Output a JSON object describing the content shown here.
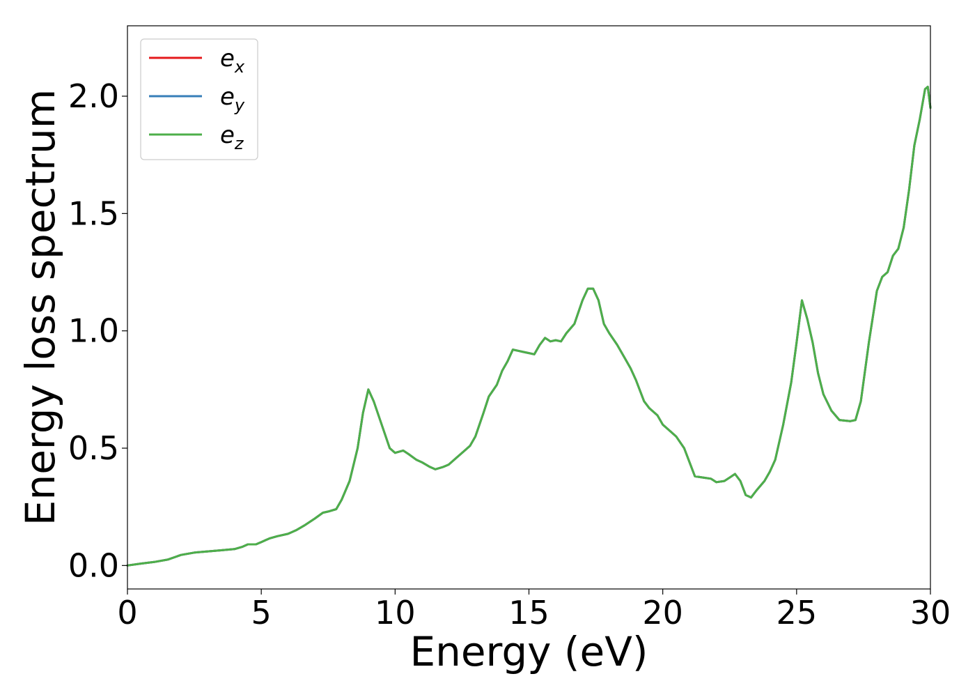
{
  "chart_data": {
    "type": "line",
    "xlabel": "Energy (eV)",
    "ylabel": "Energy loss spectrum",
    "xlim": [
      0,
      30
    ],
    "ylim": [
      -0.1,
      2.3
    ],
    "xticks": [
      "0",
      "5",
      "10",
      "15",
      "20",
      "25",
      "30"
    ],
    "yticks": [
      "0.0",
      "0.5",
      "1.0",
      "1.5",
      "2.0"
    ],
    "grid": false,
    "legend_placement": "top-left",
    "legend": [
      {
        "base": "e",
        "sub": "x",
        "color": "#e41a1c"
      },
      {
        "base": "e",
        "sub": "y",
        "color": "#377eb8"
      },
      {
        "base": "e",
        "sub": "z",
        "color": "#4daf4a"
      }
    ],
    "x": [
      0,
      0.5,
      1.0,
      1.5,
      2.0,
      2.5,
      3.0,
      3.5,
      4.0,
      4.3,
      4.5,
      4.8,
      5.0,
      5.3,
      5.6,
      6.0,
      6.3,
      6.6,
      7.0,
      7.3,
      7.5,
      7.8,
      8.0,
      8.3,
      8.6,
      8.8,
      9.0,
      9.2,
      9.5,
      9.8,
      10.0,
      10.3,
      10.5,
      10.8,
      11.0,
      11.3,
      11.5,
      11.8,
      12.0,
      12.3,
      12.6,
      12.8,
      13.0,
      13.3,
      13.5,
      13.8,
      14.0,
      14.2,
      14.4,
      14.6,
      14.8,
      15.0,
      15.2,
      15.4,
      15.6,
      15.8,
      16.0,
      16.2,
      16.4,
      16.7,
      17.0,
      17.2,
      17.4,
      17.6,
      17.8,
      18.0,
      18.3,
      18.6,
      18.8,
      19.0,
      19.3,
      19.5,
      19.8,
      20.0,
      20.3,
      20.5,
      20.8,
      21.0,
      21.2,
      21.5,
      21.8,
      22.0,
      22.3,
      22.5,
      22.7,
      22.9,
      23.1,
      23.3,
      23.5,
      23.8,
      24.0,
      24.2,
      24.5,
      24.8,
      25.0,
      25.2,
      25.4,
      25.6,
      25.8,
      26.0,
      26.3,
      26.6,
      27.0,
      27.2,
      27.4,
      27.7,
      28.0,
      28.2,
      28.4,
      28.6,
      28.8,
      29.0,
      29.2,
      29.4,
      29.6,
      29.8,
      29.9,
      30.0
    ],
    "series": [
      {
        "name": "e_x",
        "color": "#e41a1c",
        "values": [
          0.0,
          0.008,
          0.015,
          0.025,
          0.045,
          0.055,
          0.06,
          0.065,
          0.07,
          0.08,
          0.09,
          0.09,
          0.1,
          0.115,
          0.125,
          0.135,
          0.15,
          0.17,
          0.2,
          0.225,
          0.23,
          0.24,
          0.28,
          0.36,
          0.5,
          0.65,
          0.75,
          0.7,
          0.6,
          0.5,
          0.48,
          0.49,
          0.475,
          0.45,
          0.44,
          0.42,
          0.41,
          0.42,
          0.43,
          0.46,
          0.49,
          0.51,
          0.55,
          0.65,
          0.72,
          0.77,
          0.83,
          0.87,
          0.92,
          0.915,
          0.91,
          0.905,
          0.9,
          0.94,
          0.97,
          0.955,
          0.96,
          0.955,
          0.99,
          1.03,
          1.13,
          1.18,
          1.18,
          1.13,
          1.03,
          0.99,
          0.94,
          0.88,
          0.84,
          0.79,
          0.7,
          0.67,
          0.64,
          0.6,
          0.57,
          0.55,
          0.5,
          0.44,
          0.38,
          0.375,
          0.37,
          0.355,
          0.36,
          0.375,
          0.39,
          0.36,
          0.3,
          0.29,
          0.32,
          0.36,
          0.4,
          0.45,
          0.6,
          0.78,
          0.95,
          1.13,
          1.05,
          0.95,
          0.82,
          0.73,
          0.66,
          0.62,
          0.615,
          0.62,
          0.7,
          0.95,
          1.17,
          1.23,
          1.25,
          1.32,
          1.35,
          1.44,
          1.6,
          1.79,
          1.9,
          2.03,
          2.04,
          1.95
        ]
      },
      {
        "name": "e_y",
        "color": "#377eb8",
        "values": [
          0.0,
          0.008,
          0.015,
          0.025,
          0.045,
          0.055,
          0.06,
          0.065,
          0.07,
          0.08,
          0.09,
          0.09,
          0.1,
          0.115,
          0.125,
          0.135,
          0.15,
          0.17,
          0.2,
          0.225,
          0.23,
          0.24,
          0.28,
          0.36,
          0.5,
          0.65,
          0.75,
          0.7,
          0.6,
          0.5,
          0.48,
          0.49,
          0.475,
          0.45,
          0.44,
          0.42,
          0.41,
          0.42,
          0.43,
          0.46,
          0.49,
          0.51,
          0.55,
          0.65,
          0.72,
          0.77,
          0.83,
          0.87,
          0.92,
          0.915,
          0.91,
          0.905,
          0.9,
          0.94,
          0.97,
          0.955,
          0.96,
          0.955,
          0.99,
          1.03,
          1.13,
          1.18,
          1.18,
          1.13,
          1.03,
          0.99,
          0.94,
          0.88,
          0.84,
          0.79,
          0.7,
          0.67,
          0.64,
          0.6,
          0.57,
          0.55,
          0.5,
          0.44,
          0.38,
          0.375,
          0.37,
          0.355,
          0.36,
          0.375,
          0.39,
          0.36,
          0.3,
          0.29,
          0.32,
          0.36,
          0.4,
          0.45,
          0.6,
          0.78,
          0.95,
          1.13,
          1.05,
          0.95,
          0.82,
          0.73,
          0.66,
          0.62,
          0.615,
          0.62,
          0.7,
          0.95,
          1.17,
          1.23,
          1.25,
          1.32,
          1.35,
          1.44,
          1.6,
          1.79,
          1.9,
          2.03,
          2.04,
          1.95
        ]
      },
      {
        "name": "e_z",
        "color": "#4daf4a",
        "values": [
          0.0,
          0.008,
          0.015,
          0.025,
          0.045,
          0.055,
          0.06,
          0.065,
          0.07,
          0.08,
          0.09,
          0.09,
          0.1,
          0.115,
          0.125,
          0.135,
          0.15,
          0.17,
          0.2,
          0.225,
          0.23,
          0.24,
          0.28,
          0.36,
          0.5,
          0.65,
          0.75,
          0.7,
          0.6,
          0.5,
          0.48,
          0.49,
          0.475,
          0.45,
          0.44,
          0.42,
          0.41,
          0.42,
          0.43,
          0.46,
          0.49,
          0.51,
          0.55,
          0.65,
          0.72,
          0.77,
          0.83,
          0.87,
          0.92,
          0.915,
          0.91,
          0.905,
          0.9,
          0.94,
          0.97,
          0.955,
          0.96,
          0.955,
          0.99,
          1.03,
          1.13,
          1.18,
          1.18,
          1.13,
          1.03,
          0.99,
          0.94,
          0.88,
          0.84,
          0.79,
          0.7,
          0.67,
          0.64,
          0.6,
          0.57,
          0.55,
          0.5,
          0.44,
          0.38,
          0.375,
          0.37,
          0.355,
          0.36,
          0.375,
          0.39,
          0.36,
          0.3,
          0.29,
          0.32,
          0.36,
          0.4,
          0.45,
          0.6,
          0.78,
          0.95,
          1.13,
          1.05,
          0.95,
          0.82,
          0.73,
          0.66,
          0.62,
          0.615,
          0.62,
          0.7,
          0.95,
          1.17,
          1.23,
          1.25,
          1.32,
          1.35,
          1.44,
          1.6,
          1.79,
          1.9,
          2.03,
          2.04,
          1.95
        ]
      }
    ]
  }
}
